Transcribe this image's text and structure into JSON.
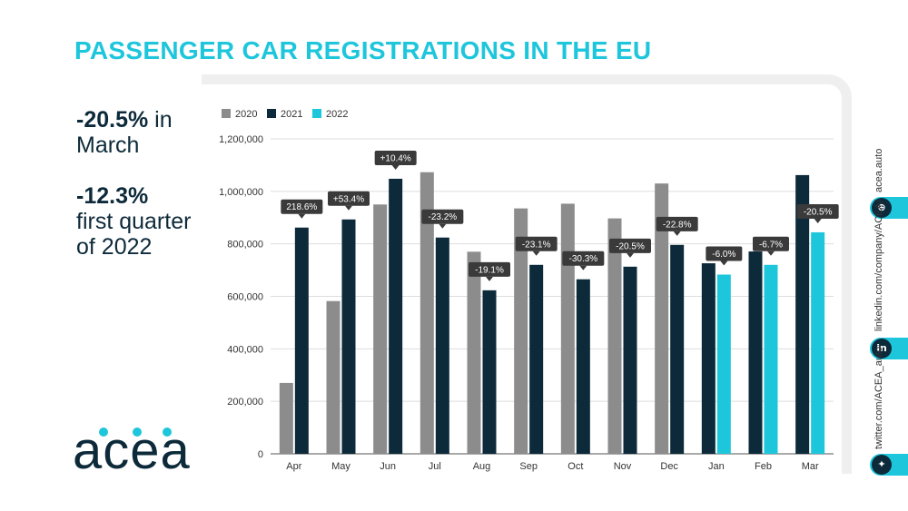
{
  "title": "PASSENGER CAR REGISTRATIONS IN THE EU",
  "stats": {
    "march_value": "-20.5%",
    "march_suffix": " in",
    "march_label": "March",
    "q1_value": "-12.3%",
    "q1_line1": "first quarter",
    "q1_line2": "of 2022"
  },
  "logo_text": "acea",
  "sidebar": {
    "website": "acea.auto",
    "linkedin": "linkedin.com/company/ACEA/",
    "twitter": "twitter.com/ACEA_auto",
    "icons": [
      "globe-icon",
      "linkedin-icon",
      "twitter-icon"
    ]
  },
  "colors": {
    "accent": "#1ec6dc",
    "navy": "#0d2a3a",
    "grey": "#8c8c8c",
    "badge": "#3a3a3a"
  },
  "chart_data": {
    "type": "bar",
    "categories": [
      "Apr",
      "May",
      "Jun",
      "Jul",
      "Aug",
      "Sep",
      "Oct",
      "Nov",
      "Dec",
      "Jan",
      "Feb",
      "Mar"
    ],
    "series": [
      {
        "name": "2020",
        "color": "#8c8c8c",
        "values": [
          270000,
          582000,
          950000,
          1073000,
          770000,
          935000,
          953000,
          897000,
          1030000,
          null,
          null,
          null
        ]
      },
      {
        "name": "2021",
        "color": "#0d2a3a",
        "values": [
          862000,
          893000,
          1048000,
          824000,
          623000,
          720000,
          665000,
          713000,
          796000,
          726000,
          771000,
          1062000
        ]
      },
      {
        "name": "2022",
        "color": "#1ec6dc",
        "values": [
          null,
          null,
          null,
          null,
          null,
          null,
          null,
          null,
          null,
          683000,
          720000,
          844000
        ]
      }
    ],
    "labels": [
      "218.6%",
      "+53.4%",
      "+10.4%",
      "-23.2%",
      "-19.1%",
      "-23.1%",
      "-30.3%",
      "-20.5%",
      "-22.8%",
      "-6.0%",
      "-6.7%",
      "-20.5%"
    ],
    "ylim": [
      0,
      1200000
    ],
    "yticks": [
      "0",
      "200,000",
      "400,000",
      "600,000",
      "800,000",
      "1,000,000",
      "1,200,000"
    ],
    "legend_position": "top-left",
    "grid": true
  }
}
